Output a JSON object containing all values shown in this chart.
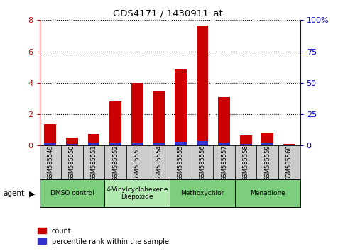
{
  "title": "GDS4171 / 1430911_at",
  "samples": [
    "GSM585549",
    "GSM585550",
    "GSM585551",
    "GSM585552",
    "GSM585553",
    "GSM585554",
    "GSM585555",
    "GSM585556",
    "GSM585557",
    "GSM585558",
    "GSM585559",
    "GSM585560"
  ],
  "count_values": [
    1.35,
    0.5,
    0.75,
    2.8,
    4.0,
    3.45,
    4.85,
    7.65,
    3.1,
    0.65,
    0.85,
    0.1
  ],
  "percentile_values": [
    0.2,
    0.12,
    0.18,
    0.18,
    0.2,
    0.19,
    0.22,
    0.28,
    0.18,
    0.12,
    0.15,
    0.05
  ],
  "bar_color_red": "#cc0000",
  "bar_color_blue": "#3333cc",
  "ylim": [
    0,
    8
  ],
  "y2lim": [
    0,
    100
  ],
  "yticks": [
    0,
    2,
    4,
    6,
    8
  ],
  "y2ticks": [
    0,
    25,
    50,
    75,
    100
  ],
  "y2ticklabels": [
    "0",
    "25",
    "50",
    "75",
    "100%"
  ],
  "groups": [
    {
      "label": "DMSO control",
      "start": 0,
      "end": 3,
      "color": "#7ccd7c"
    },
    {
      "label": "4-Vinylcyclohexene\nDiepoxide",
      "start": 3,
      "end": 6,
      "color": "#b0e8b0"
    },
    {
      "label": "Methoxychlor",
      "start": 6,
      "end": 9,
      "color": "#7ccd7c"
    },
    {
      "label": "Menadione",
      "start": 9,
      "end": 12,
      "color": "#7ccd7c"
    }
  ],
  "agent_label": "agent",
  "legend_count": "count",
  "legend_percentile": "percentile rank within the sample",
  "bar_width": 0.55,
  "tick_bg_color": "#cccccc",
  "dotted_grid_color": "#000000",
  "right_axis_color": "#0000cc",
  "left_axis_color": "#cc0000"
}
